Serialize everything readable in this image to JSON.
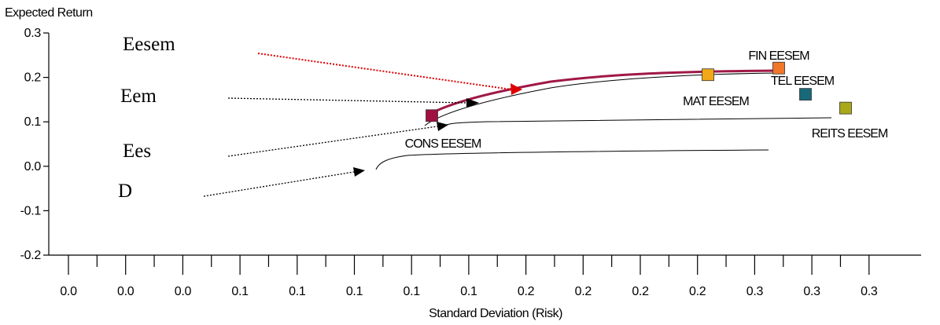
{
  "chart_data": {
    "type": "line",
    "title": "",
    "ylabel": "Expected Return",
    "xlabel": "Standard Deviation (Risk)",
    "ylim": [
      -0.2,
      0.3
    ],
    "y_ticks": [
      "0.3",
      "0.2",
      "0.1",
      "0.0",
      "-0.1",
      "-0.2"
    ],
    "x_tick_labels": [
      "0.0",
      "0.0",
      "0.0",
      "0.1",
      "0.1",
      "0.1",
      "0.1",
      "0.1",
      "0.2",
      "0.2",
      "0.2",
      "0.2",
      "0.3",
      "0.3",
      "0.3"
    ],
    "grid": false,
    "legend": "none",
    "frontier_labels": [
      {
        "text": "Eesem",
        "color": "#dd0000"
      },
      {
        "text": "Eem",
        "color": "#000000"
      },
      {
        "text": "Ees",
        "color": "#000000"
      },
      {
        "text": "D",
        "color": "#000000"
      }
    ],
    "assets": [
      {
        "label": "CONS EESEM",
        "y": 0.114,
        "color": "#a01040"
      },
      {
        "label": "MAT EESEM",
        "y": 0.206,
        "color": "#f0a818"
      },
      {
        "label": "FIN EESEM",
        "y": 0.221,
        "color": "#f07828"
      },
      {
        "label": "TEL EESEM",
        "y": 0.162,
        "color": "#186878"
      },
      {
        "label": "REITS EESEM",
        "y": 0.131,
        "color": "#a8a818"
      }
    ],
    "series_colors": {
      "eesem": "#a01848",
      "eesem_arrow": "#dd0000",
      "other": "#000000"
    }
  }
}
